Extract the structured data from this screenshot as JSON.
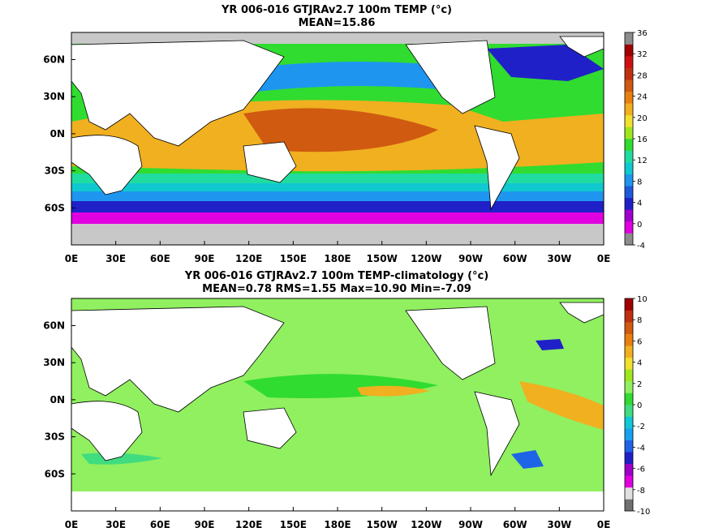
{
  "panels": [
    {
      "title": "YR 006-016 GTJRAv2.7 100m TEMP (°c)",
      "stats": "MEAN=15.86",
      "colorbar_labels": [
        "36",
        "32",
        "28",
        "24",
        "20",
        "16",
        "12",
        "8",
        "4",
        "0",
        "-4"
      ],
      "colorbar_colors": [
        "#8c8c8c",
        "#e000e0",
        "#a000d0",
        "#2020c8",
        "#1e5adc",
        "#1e96f0",
        "#10c8d0",
        "#20dca0",
        "#30dc30",
        "#a0e620",
        "#f0e030",
        "#f0b020",
        "#e88010",
        "#d05a10",
        "#c03010",
        "#d01010",
        "#a00000",
        "#8c8c8c"
      ]
    },
    {
      "title": "YR 006-016 GTJRAv2.7 100m TEMP-climatology (°c)",
      "stats": "MEAN=0.78   RMS=1.55   Max=10.90   Min=-7.09",
      "colorbar_labels": [
        "10",
        "8",
        "6",
        "4",
        "2",
        "0",
        "-2",
        "-4",
        "-6",
        "-8",
        "-10"
      ],
      "colorbar_colors": [
        "#707070",
        "#e0e0e0",
        "#e000e0",
        "#a000c8",
        "#2020c8",
        "#1e64e6",
        "#18a0f0",
        "#10c8d8",
        "#40dc80",
        "#30dc30",
        "#90f060",
        "#a0e620",
        "#f0e030",
        "#f0b020",
        "#e88010",
        "#d05a10",
        "#c03010",
        "#a00000"
      ]
    }
  ],
  "x_ticks": [
    "0E",
    "30E",
    "60E",
    "90E",
    "120E",
    "150E",
    "180E",
    "150W",
    "120W",
    "90W",
    "60W",
    "30W",
    "0E"
  ],
  "y_ticks": [
    "60N",
    "30N",
    "0N",
    "30S",
    "60S"
  ],
  "colors": {
    "ocean_warm": "#f0b020",
    "ocean_mid": "#30dc30",
    "anomaly_bg": "#90f060",
    "land": "#ffffff",
    "ice": "#c8c8c8"
  }
}
